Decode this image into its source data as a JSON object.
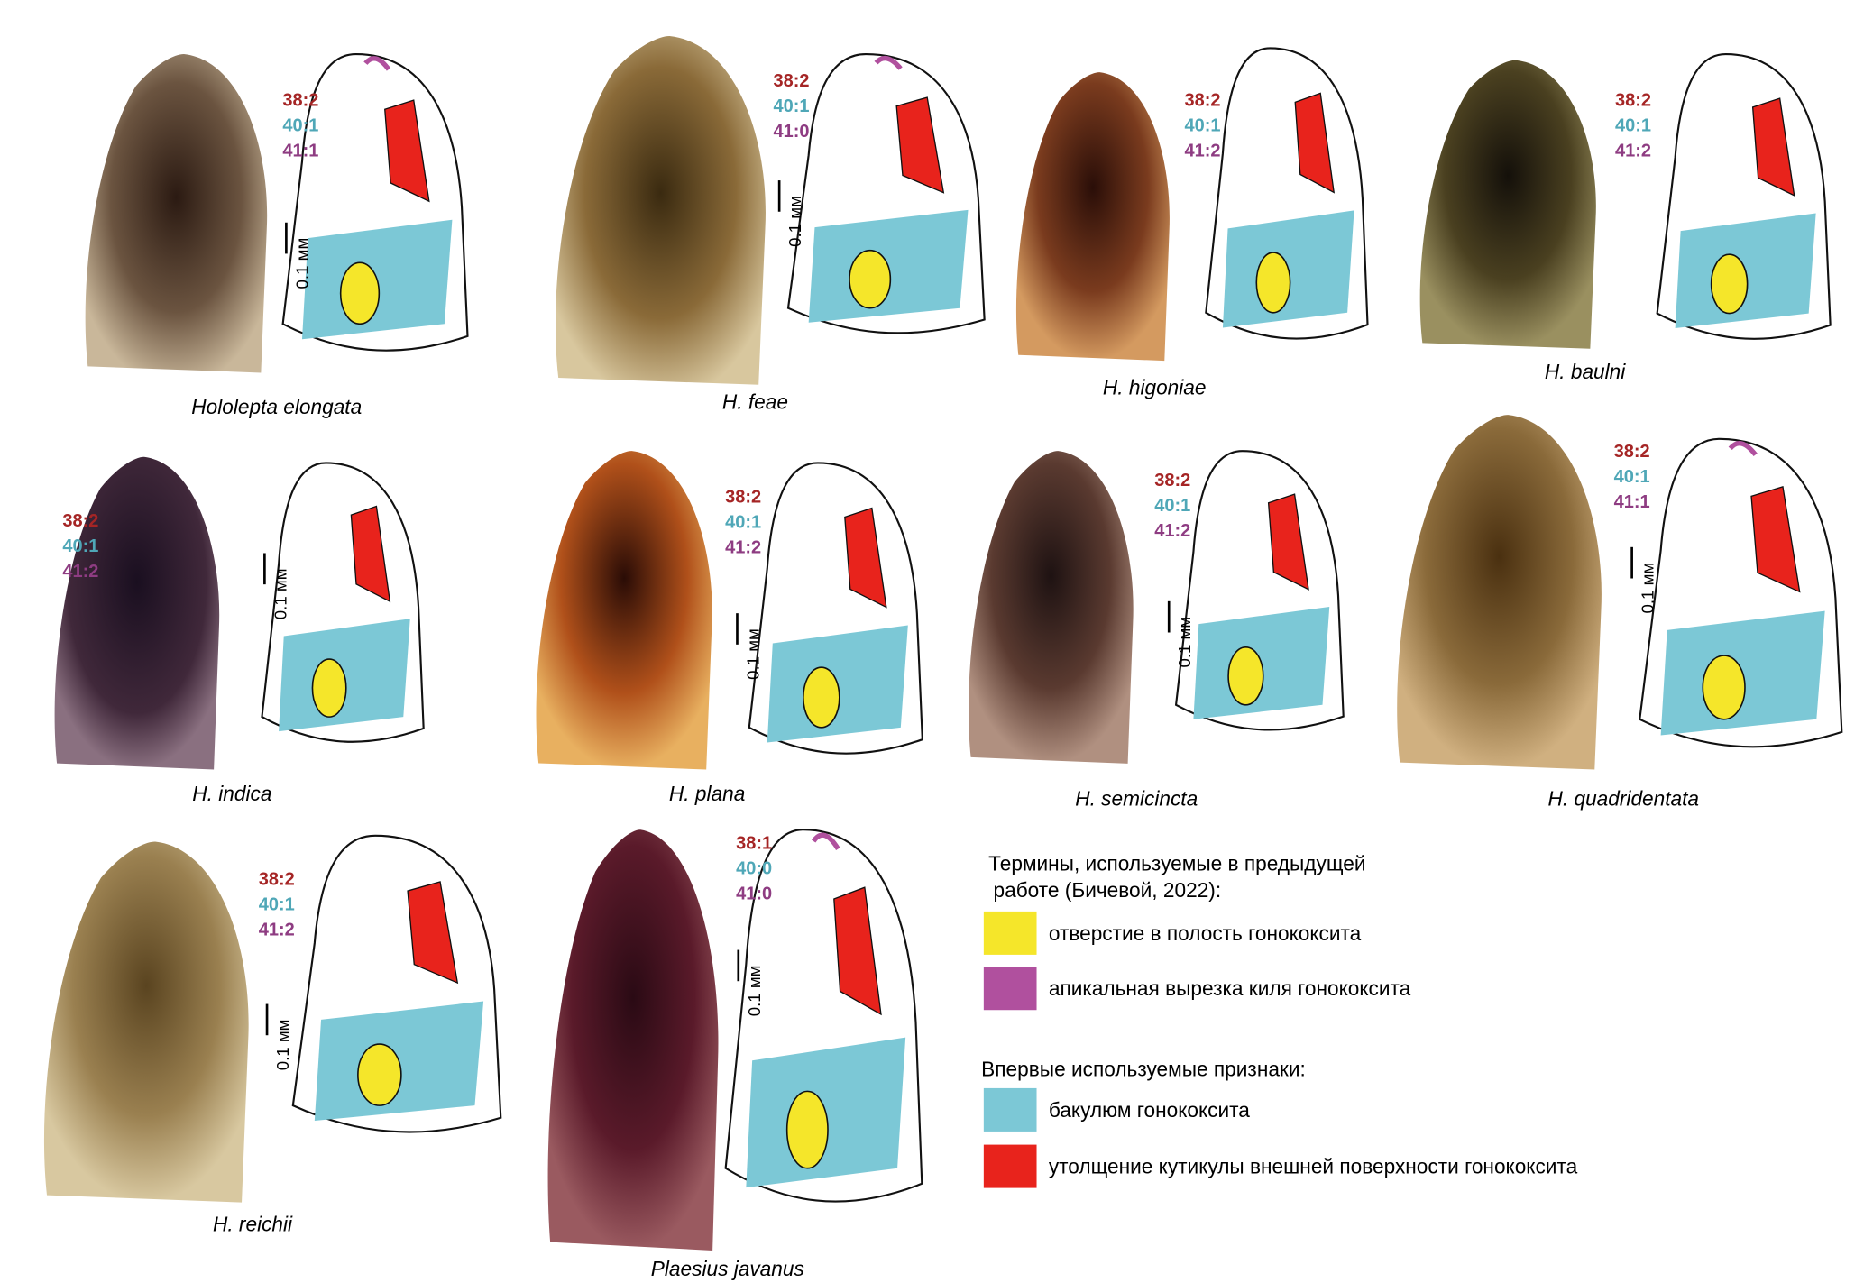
{
  "panels": [
    {
      "name": "Hololepta elongata",
      "codes": [
        "38:2",
        "40:1",
        "41:1"
      ],
      "scale_bar": "0.1 мм"
    },
    {
      "name": "H. feae",
      "codes": [
        "38:2",
        "40:1",
        "41:0"
      ],
      "scale_bar": "0.1 мм"
    },
    {
      "name": "H. higoniae",
      "codes": [
        "38:2",
        "40:1",
        "41:2"
      ]
    },
    {
      "name": "H. baulni",
      "codes": [
        "38:2",
        "40:1",
        "41:2"
      ]
    },
    {
      "name": "H. indica",
      "codes": [
        "38:2",
        "40:1",
        "41:2"
      ],
      "scale_bar": "0.1 мм"
    },
    {
      "name": "H. plana",
      "codes": [
        "38:2",
        "40:1",
        "41:2"
      ],
      "scale_bar": "0.1 мм"
    },
    {
      "name": "H. semicincta",
      "codes": [
        "38:2",
        "40:1",
        "41:2"
      ],
      "scale_bar": "0.1 мм"
    },
    {
      "name": "H. quadridentata",
      "codes": [
        "38:2",
        "40:1",
        "41:1"
      ],
      "scale_bar": "0.1 мм"
    },
    {
      "name": "H. reichii",
      "codes": [
        "38:2",
        "40:1",
        "41:2"
      ],
      "scale_bar": "0.1 мм"
    },
    {
      "name": "Plaesius javanus",
      "codes": [
        "38:1",
        "40:0",
        "41:0"
      ],
      "scale_bar": "0.1 мм"
    }
  ],
  "legend": {
    "previous_title": [
      "Термины, используемые в предыдущей",
      "работе (Бичевой, 2022):"
    ],
    "previous_items": [
      "отверстие в полость гонококсита",
      "апикальная вырезка киля гонококсита"
    ],
    "new_title": "Впервые используемые признаки:",
    "new_items": [
      "бакулюм гонококсита",
      "утолщение кутикулы внешней поверхности гонококсита"
    ]
  }
}
